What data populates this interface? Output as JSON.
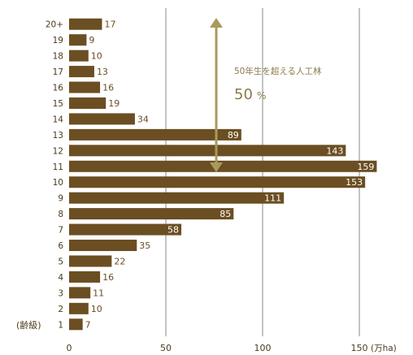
{
  "chart_data": {
    "type": "bar",
    "orientation": "horizontal",
    "categories": [
      "20+",
      "19",
      "18",
      "17",
      "16",
      "15",
      "14",
      "13",
      "12",
      "11",
      "10",
      "9",
      "8",
      "7",
      "6",
      "5",
      "4",
      "3",
      "2",
      "1"
    ],
    "values": [
      17,
      9,
      10,
      13,
      16,
      19,
      34,
      89,
      143,
      159,
      153,
      111,
      85,
      58,
      35,
      22,
      16,
      11,
      10,
      7
    ],
    "xlim": [
      0,
      150
    ],
    "x_ticks": [
      0,
      50,
      100,
      150
    ],
    "x_tick_labels": [
      "0",
      "50",
      "100",
      "150"
    ],
    "x_unit": "(万ha)",
    "y_annotation": "(齢級)",
    "grid": "vertical",
    "annotation": {
      "text": "50年生を超える人工林",
      "value": "50",
      "unit": "%"
    },
    "colors": {
      "bar": "#6b4e22",
      "bar_label_inside": "#ffffff",
      "bar_label_outside": "#6b4e22",
      "grid": "#8a8a8a",
      "arrow": "#a99a5c",
      "annotation_text": "#8a7a4a",
      "tick_text": "#4a3a1c"
    }
  }
}
